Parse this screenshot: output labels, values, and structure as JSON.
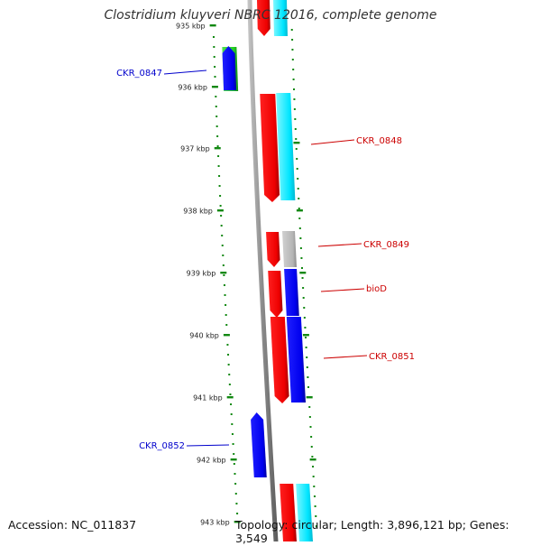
{
  "title": "Clostridium kluyveri NBRC 12016, complete genome",
  "footer": {
    "accession": "Accession: NC_011837",
    "summary": "Topology: circular; Length: 3,896,121 bp; Genes: 3,549"
  },
  "colors": {
    "red": "#ff0000",
    "blue": "#0000ff",
    "cyan": "#00e5ff",
    "green": "#22cc22",
    "gray": "#b4b4b4",
    "backbone": "#8a8a8a",
    "ticks": "#118811",
    "label_red": "#cc0000",
    "label_blue": "#0000cc"
  },
  "scale": {
    "unit": "kbp",
    "ticks": [
      {
        "label": "935 kbp"
      },
      {
        "label": "936 kbp"
      },
      {
        "label": "937 kbp"
      },
      {
        "label": "938 kbp"
      },
      {
        "label": "939 kbp"
      },
      {
        "label": "940 kbp"
      },
      {
        "label": "941 kbp"
      },
      {
        "label": "942 kbp"
      },
      {
        "label": "943 kbp"
      }
    ]
  },
  "gene_labels": [
    {
      "text": "CKR_0847",
      "color": "blue"
    },
    {
      "text": "CKR_0848",
      "color": "red"
    },
    {
      "text": "CKR_0849",
      "color": "red"
    },
    {
      "text": "bioD",
      "color": "red"
    },
    {
      "text": "CKR_0851",
      "color": "red"
    },
    {
      "text": "CKR_0852",
      "color": "blue"
    }
  ]
}
